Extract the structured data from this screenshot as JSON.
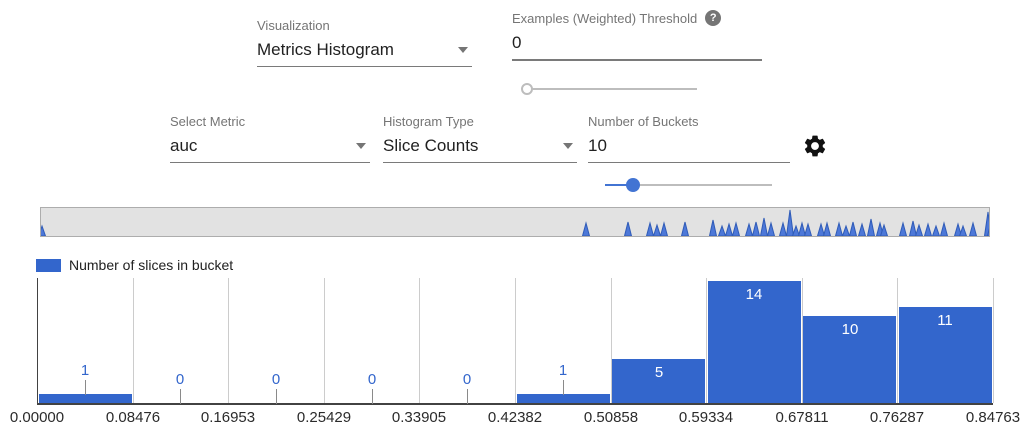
{
  "controls": {
    "visualization": {
      "label": "Visualization",
      "value": "Metrics Histogram"
    },
    "threshold": {
      "label": "Examples (Weighted) Threshold",
      "value": "0",
      "help_icon": "question-mark",
      "slider_percent": 3
    },
    "metric": {
      "label": "Select Metric",
      "value": "auc"
    },
    "histogram_type": {
      "label": "Histogram Type",
      "value": "Slice Counts"
    },
    "buckets": {
      "label": "Number of Buckets",
      "value": "10",
      "slider_percent": 17
    }
  },
  "legend": {
    "label": "Number of slices in bucket"
  },
  "overview": {
    "spike_fill": "#4d78d8",
    "spike_stroke": "#2f5bb7",
    "spikes": [
      [
        1,
        10
      ],
      [
        545,
        13
      ],
      [
        587,
        14
      ],
      [
        609,
        13
      ],
      [
        616,
        11
      ],
      [
        623,
        13
      ],
      [
        644,
        14
      ],
      [
        672,
        16
      ],
      [
        681,
        10
      ],
      [
        688,
        12
      ],
      [
        695,
        13
      ],
      [
        708,
        12
      ],
      [
        715,
        14
      ],
      [
        723,
        18
      ],
      [
        730,
        13
      ],
      [
        742,
        13
      ],
      [
        749,
        26
      ],
      [
        755,
        10
      ],
      [
        761,
        13
      ],
      [
        767,
        12
      ],
      [
        780,
        12
      ],
      [
        786,
        13
      ],
      [
        798,
        13
      ],
      [
        805,
        10
      ],
      [
        812,
        14
      ],
      [
        821,
        12
      ],
      [
        830,
        17
      ],
      [
        839,
        13
      ],
      [
        843,
        11
      ],
      [
        862,
        13
      ],
      [
        872,
        15
      ],
      [
        878,
        11
      ],
      [
        887,
        12
      ],
      [
        895,
        10
      ],
      [
        903,
        13
      ],
      [
        917,
        12
      ],
      [
        922,
        10
      ],
      [
        932,
        13
      ],
      [
        947,
        24
      ],
      [
        950,
        14
      ]
    ]
  },
  "chart_data": {
    "type": "bar",
    "title": "",
    "series_label": "Number of slices in bucket",
    "tick_labels": [
      "0.00000",
      "0.08476",
      "0.16953",
      "0.25429",
      "0.33905",
      "0.42382",
      "0.50858",
      "0.59334",
      "0.67811",
      "0.76287",
      "0.84763"
    ],
    "values": [
      1,
      0,
      0,
      0,
      0,
      1,
      5,
      14,
      10,
      11
    ],
    "ylim": [
      0,
      14
    ],
    "xlabel": "",
    "ylabel": "",
    "legend_position": "top-left",
    "grid": "vertical",
    "bar_color": "#3366cc",
    "outside_label_color": "#3366cc"
  },
  "colors": {
    "accent_blue": "#3366cc",
    "slider_blue": "#4274d3",
    "label_gray": "#757575",
    "value_black": "#212121",
    "strip_bg": "#e2e2e2"
  }
}
